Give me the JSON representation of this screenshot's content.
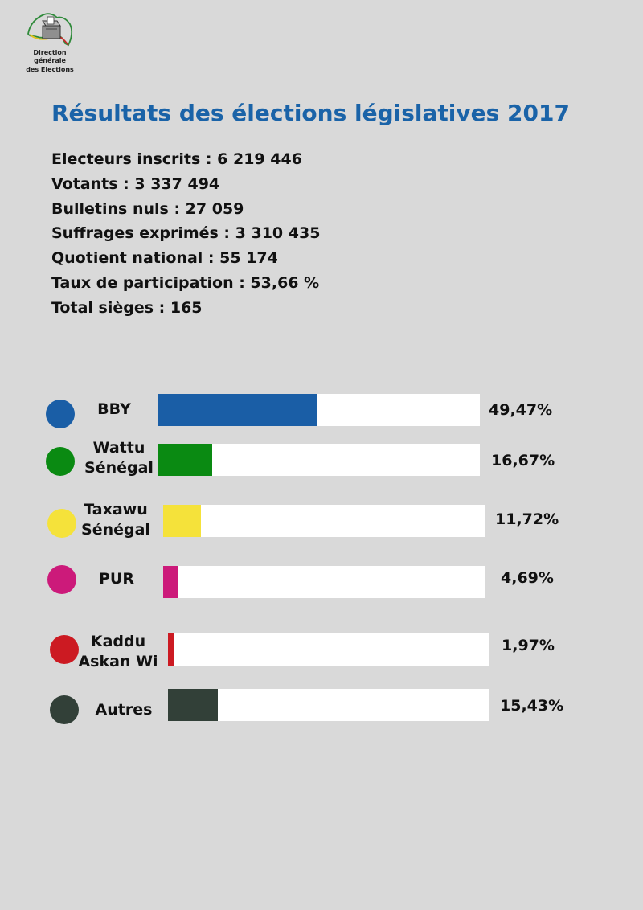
{
  "logo": {
    "line1": "Direction générale",
    "line2": "des Elections"
  },
  "title": "Résultats des élections législatives 2017",
  "stats": [
    "Electeurs inscrits : 6 219 446",
    "Votants : 3 337 494",
    "Bulletins nuls : 27 059",
    "Suffrages exprimés : 3 310 435",
    "Quotient national : 55 174",
    "Taux de participation : 53,66 %",
    "Total sièges : 165"
  ],
  "chart_data": {
    "type": "bar",
    "orientation": "horizontal",
    "categories": [
      "BBY",
      "Wattu\nSénégal",
      "Taxawu\nSénégal",
      "PUR",
      "Kaddu\nAskan Wi",
      "Autres"
    ],
    "values": [
      49.47,
      16.67,
      11.72,
      4.69,
      1.97,
      15.43
    ],
    "value_labels": [
      "49,47%",
      "16,67%",
      "11,72%",
      "4,69%",
      "1,97%",
      "15,43%"
    ],
    "colors": [
      "#1a5ea6",
      "#0a8a12",
      "#f5e23a",
      "#cc1a7a",
      "#cc1a22",
      "#324038"
    ],
    "xlim": [
      0,
      100
    ],
    "grid": false
  }
}
